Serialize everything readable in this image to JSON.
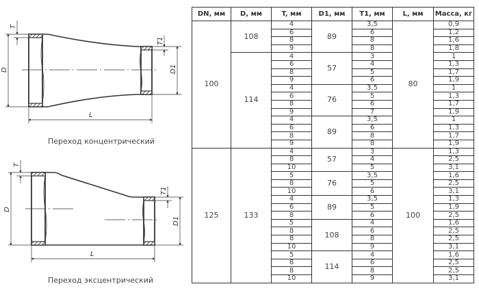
{
  "drawings": {
    "concentric": {
      "caption": "Переход концентрический",
      "labels": {
        "d": "D",
        "t": "T",
        "d1": "D1",
        "t1": "T1",
        "l": "L"
      }
    },
    "eccentric": {
      "caption": "Переход эксцентрический",
      "labels": {
        "d": "D",
        "t": "T",
        "d1": "D1",
        "t1": "T1",
        "l": "L"
      }
    }
  },
  "table": {
    "headers": [
      "DN, мм",
      "D, мм",
      "T, мм",
      "D1, мм",
      "T1, мм",
      "L, мм",
      "Масса, кг"
    ],
    "groups": [
      {
        "dn": "100",
        "l": "80",
        "d_groups": [
          {
            "d": "108",
            "d1_groups": [
              {
                "d1": "89",
                "rows": [
                  [
                    "4",
                    "3,5",
                    "0,9"
                  ],
                  [
                    "6",
                    "6",
                    "1,2"
                  ],
                  [
                    "8",
                    "8",
                    "1,6"
                  ],
                  [
                    "9",
                    "8",
                    "1,8"
                  ]
                ]
              }
            ]
          },
          {
            "d": "114",
            "d1_groups": [
              {
                "d1": "57",
                "rows": [
                  [
                    "4",
                    "3",
                    "1"
                  ],
                  [
                    "6",
                    "4",
                    "1,3"
                  ],
                  [
                    "8",
                    "5",
                    "1,7"
                  ],
                  [
                    "9",
                    "6",
                    "1,9"
                  ]
                ]
              },
              {
                "d1": "76",
                "rows": [
                  [
                    "4",
                    "3,5",
                    "1"
                  ],
                  [
                    "6",
                    "5",
                    "1,3"
                  ],
                  [
                    "8",
                    "6",
                    "1,7"
                  ],
                  [
                    "9",
                    "7",
                    "1,9"
                  ]
                ]
              },
              {
                "d1": "89",
                "rows": [
                  [
                    "4",
                    "3,5",
                    "1"
                  ],
                  [
                    "6",
                    "6",
                    "1,3"
                  ],
                  [
                    "8",
                    "8",
                    "1,7"
                  ],
                  [
                    "9",
                    "8",
                    "1,9"
                  ]
                ]
              }
            ]
          }
        ]
      },
      {
        "dn": "125",
        "l": "100",
        "d_groups": [
          {
            "d": "133",
            "d1_groups": [
              {
                "d1": "57",
                "rows": [
                  [
                    "4",
                    "3",
                    "1,3"
                  ],
                  [
                    "8",
                    "4",
                    "2,5"
                  ],
                  [
                    "10",
                    "5",
                    "3,1"
                  ]
                ]
              },
              {
                "d1": "76",
                "rows": [
                  [
                    "5",
                    "3,5",
                    "1,6"
                  ],
                  [
                    "8",
                    "5",
                    "2,5"
                  ],
                  [
                    "10",
                    "6",
                    "3,1"
                  ]
                ]
              },
              {
                "d1": "89",
                "rows": [
                  [
                    "4",
                    "3,5",
                    "1,3"
                  ],
                  [
                    "6",
                    "5",
                    "1,9"
                  ],
                  [
                    "8",
                    "6",
                    "2,5"
                  ]
                ]
              },
              {
                "d1": "108",
                "rows": [
                  [
                    "5",
                    "4",
                    "1,6"
                  ],
                  [
                    "8",
                    "6",
                    "2,5"
                  ],
                  [
                    "8",
                    "8",
                    "2,5"
                  ],
                  [
                    "10",
                    "9",
                    "3,1"
                  ]
                ]
              },
              {
                "d1": "114",
                "rows": [
                  [
                    "5",
                    "4",
                    "1,6"
                  ],
                  [
                    "8",
                    "6",
                    "2,5"
                  ],
                  [
                    "8",
                    "8",
                    "2,5"
                  ],
                  [
                    "10",
                    "9",
                    "3,1"
                  ]
                ]
              }
            ]
          }
        ]
      }
    ]
  }
}
